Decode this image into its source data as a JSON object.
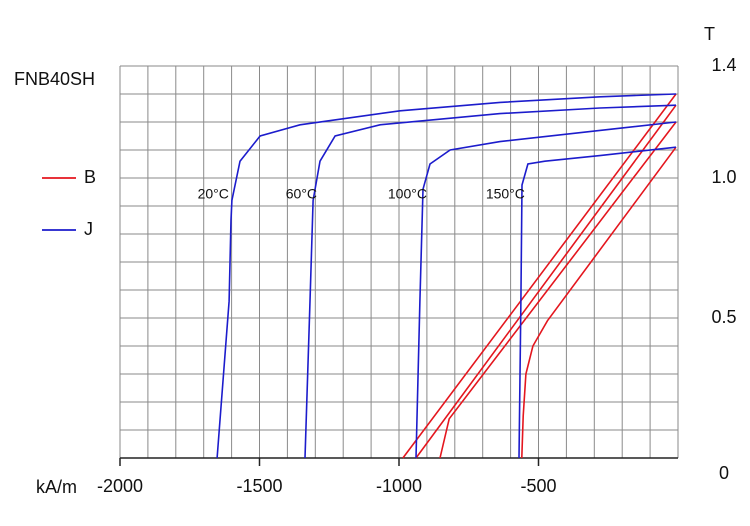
{
  "chart_data": {
    "type": "line",
    "title": "FNB40SH",
    "x_label": "kA/m",
    "y_label": "T",
    "xlim": [
      -2000,
      0
    ],
    "ylim": [
      0,
      1.4
    ],
    "xticks": [
      -2000,
      -1500,
      -1000,
      -500
    ],
    "yticks": [
      0,
      0.5,
      {
        "value": 1,
        "label": "1.0"
      },
      1.4
    ],
    "xgrid": [
      -2000,
      -1900,
      -1800,
      -1700,
      -1600,
      -1500,
      -1400,
      -1300,
      -1200,
      -1100,
      -1000,
      -900,
      -800,
      -700,
      -600,
      -500,
      -400,
      -300,
      -200,
      -100,
      0
    ],
    "ygrid": [
      0,
      0.1,
      0.2,
      0.3,
      0.4,
      0.5,
      0.6,
      0.7,
      0.8,
      0.9,
      1,
      1.1,
      1.2,
      1.3,
      1.4
    ],
    "legend": "left",
    "series": [
      {
        "name": "B",
        "color": "#e4161e",
        "curves": [
          {
            "x": [
              -986,
              -7
            ],
            "values": [
              0,
              1.3
            ]
          },
          {
            "x": [
              -939,
              -7
            ],
            "values": [
              0,
              1.26
            ]
          },
          {
            "x": [
              -853,
              -820,
              -7
            ],
            "values": [
              0,
              0.14,
              1.2
            ]
          },
          {
            "x": [
              -560,
              -555,
              -545,
              -520,
              -468,
              -7
            ],
            "values": [
              0,
              0.15,
              0.3,
              0.4,
              0.49,
              1.11
            ]
          }
        ]
      },
      {
        "name": "J",
        "color": "#1c1ccc",
        "curves": [
          {
            "label": "20°C",
            "x": [
              -1652,
              -1609,
              -1602,
              -1599,
              -1570,
              -1498,
              -1355,
              -996,
              -638,
              -280,
              -7
            ],
            "values": [
              0,
              0.56,
              0.85,
              0.92,
              1.06,
              1.15,
              1.19,
              1.24,
              1.27,
              1.29,
              1.3
            ]
          },
          {
            "label": "60°C",
            "x": [
              -1337,
              -1319,
              -1308,
              -1283,
              -1229,
              -1068,
              -638,
              -280,
              -7
            ],
            "values": [
              0,
              0.56,
              0.92,
              1.06,
              1.15,
              1.19,
              1.23,
              1.25,
              1.26
            ]
          },
          {
            "label": "100°C",
            "x": [
              -939,
              -925,
              -914,
              -889,
              -817,
              -638,
              -280,
              -7
            ],
            "values": [
              0,
              0.56,
              0.96,
              1.05,
              1.1,
              1.13,
              1.17,
              1.2
            ]
          },
          {
            "label": "150°C",
            "x": [
              -570,
              -563,
              -559,
              -538,
              -477,
              -280,
              -7
            ],
            "values": [
              0,
              0.56,
              0.975,
              1.05,
              1.06,
              1.08,
              1.11
            ]
          }
        ]
      }
    ]
  }
}
